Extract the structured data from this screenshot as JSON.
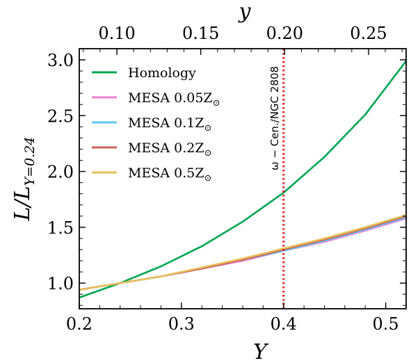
{
  "chart_data": {
    "type": "line",
    "xlabel": "Y",
    "ylabel": "L/L",
    "ylabel_sub": "Y=0.24",
    "top_xlabel": "y",
    "xlim": [
      0.2,
      0.52
    ],
    "ylim": [
      0.77,
      3.1
    ],
    "x_ticks": [
      {
        "v": 0.2,
        "label": "0.2"
      },
      {
        "v": 0.3,
        "label": "0.3"
      },
      {
        "v": 0.4,
        "label": "0.4"
      },
      {
        "v": 0.5,
        "label": "0.5"
      }
    ],
    "y_ticks": [
      {
        "v": 1.0,
        "label": "1.0"
      },
      {
        "v": 1.5,
        "label": "1.5"
      },
      {
        "v": 2.0,
        "label": "2.0"
      },
      {
        "v": 2.5,
        "label": "2.5"
      },
      {
        "v": 3.0,
        "label": "3.0"
      }
    ],
    "top_ticks": [
      {
        "v": 0.1,
        "label": "0.10"
      },
      {
        "v": 0.15,
        "label": "0.15"
      },
      {
        "v": 0.2,
        "label": "0.20"
      },
      {
        "v": 0.25,
        "label": "0.25"
      }
    ],
    "vline": {
      "x": 0.4,
      "color": "#e41a1c",
      "label": "ω − Cen./NGC 2808"
    },
    "legend_position": "top-left",
    "series": [
      {
        "name": "Homology",
        "label_main": "Homology",
        "label_sub": "",
        "color": "#00a651",
        "x": [
          0.2,
          0.24,
          0.28,
          0.32,
          0.36,
          0.4,
          0.44,
          0.48,
          0.52
        ],
        "y": [
          0.87,
          1.0,
          1.15,
          1.33,
          1.55,
          1.81,
          2.13,
          2.51,
          2.99
        ]
      },
      {
        "name": "MESA 0.05Z⊙",
        "label_main": "MESA 0.05Z",
        "label_sub": "⊙",
        "color": "#f07fd0",
        "x": [
          0.2,
          0.24,
          0.28,
          0.32,
          0.36,
          0.4,
          0.44,
          0.48,
          0.52
        ],
        "y": [
          0.94,
          1.0,
          1.06,
          1.13,
          1.2,
          1.29,
          1.37,
          1.47,
          1.58
        ]
      },
      {
        "name": "MESA 0.1Z⊙",
        "label_main": "MESA 0.1Z",
        "label_sub": "⊙",
        "color": "#5bc8f0",
        "x": [
          0.2,
          0.24,
          0.28,
          0.32,
          0.36,
          0.4,
          0.44,
          0.48,
          0.52
        ],
        "y": [
          0.94,
          1.0,
          1.06,
          1.13,
          1.21,
          1.29,
          1.38,
          1.48,
          1.59
        ]
      },
      {
        "name": "MESA 0.2Z⊙",
        "label_main": "MESA 0.2Z",
        "label_sub": "⊙",
        "color": "#cd6155",
        "x": [
          0.2,
          0.24,
          0.28,
          0.32,
          0.36,
          0.4,
          0.44,
          0.48,
          0.52
        ],
        "y": [
          0.94,
          1.0,
          1.06,
          1.13,
          1.21,
          1.3,
          1.39,
          1.49,
          1.6
        ]
      },
      {
        "name": "MESA 0.5Z⊙",
        "label_main": "MESA 0.5Z",
        "label_sub": "⊙",
        "color": "#e8c05a",
        "x": [
          0.2,
          0.24,
          0.28,
          0.32,
          0.36,
          0.4,
          0.44,
          0.48,
          0.52
        ],
        "y": [
          0.94,
          1.0,
          1.06,
          1.14,
          1.22,
          1.31,
          1.4,
          1.5,
          1.61
        ]
      }
    ]
  }
}
